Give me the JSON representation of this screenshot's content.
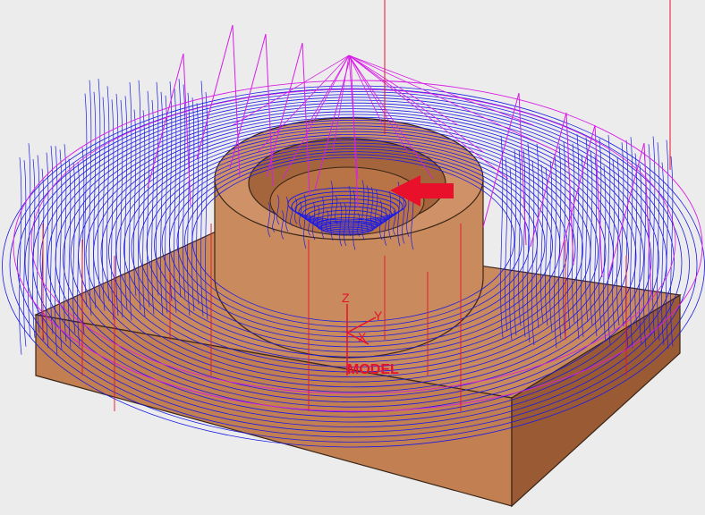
{
  "viewport": {
    "part_name": "cnc-workpiece-with-cylindrical-boss",
    "background_color": "#ececec"
  },
  "colors": {
    "stock": "#c98a5e",
    "stock_dark": "#a8643b",
    "stock_light": "#dfa47a",
    "toolpath_blue": "#1a1ae6",
    "toolpath_magenta": "#d81ee6",
    "axis_red": "#e8102a"
  },
  "axes": {
    "z_label": "Z",
    "y_label": "Y",
    "x_label": "X",
    "csys_label": "MODEL"
  },
  "annotations": {
    "arrow_icon": "red-arrow-left-icon"
  }
}
